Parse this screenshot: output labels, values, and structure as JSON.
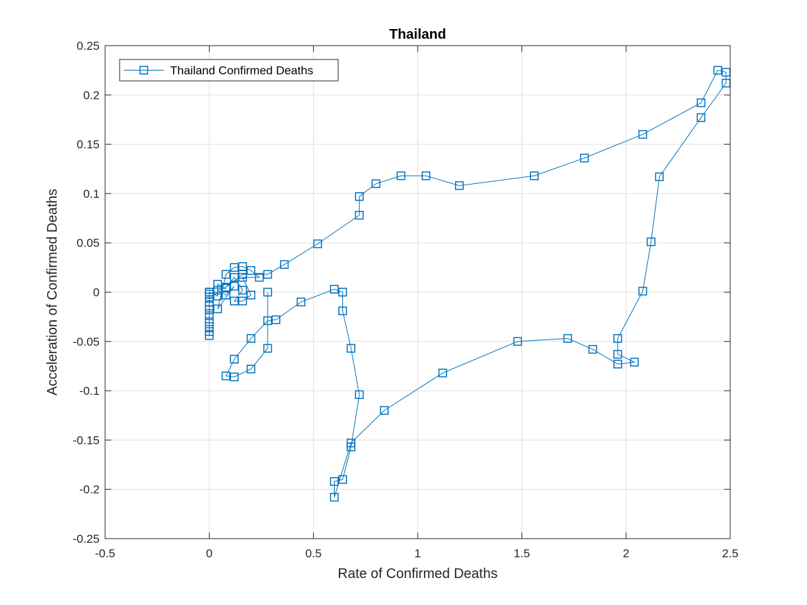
{
  "chart_data": {
    "type": "line",
    "title": "Thailand",
    "xlabel": "Rate of Confirmed Deaths",
    "ylabel": "Acceleration of Confirmed Deaths",
    "xlim": [
      -0.5,
      2.5
    ],
    "ylim": [
      -0.25,
      0.25
    ],
    "xticks": [
      -0.5,
      0,
      0.5,
      1,
      1.5,
      2,
      2.5
    ],
    "xtick_labels": [
      "-0.5",
      "0",
      "0.5",
      "1",
      "1.5",
      "2",
      "2.5"
    ],
    "yticks": [
      -0.25,
      -0.2,
      -0.15,
      -0.1,
      -0.05,
      0,
      0.05,
      0.1,
      0.15,
      0.2,
      0.25
    ],
    "ytick_labels": [
      "-0.25",
      "-0.2",
      "-0.15",
      "-0.1",
      "-0.05",
      "0",
      "0.05",
      "0.1",
      "0.15",
      "0.2",
      "0.25"
    ],
    "grid": true,
    "legend_position": "top-left",
    "series": [
      {
        "name": "Thailand Confirmed Deaths",
        "color": "#0072BD",
        "marker": "square",
        "points": [
          [
            0,
            0
          ],
          [
            0,
            -0.002
          ],
          [
            0,
            -0.005
          ],
          [
            0,
            -0.01
          ],
          [
            0,
            -0.014
          ],
          [
            0,
            -0.018
          ],
          [
            0,
            -0.024
          ],
          [
            0,
            -0.03
          ],
          [
            0,
            -0.035
          ],
          [
            0,
            -0.04
          ],
          [
            0,
            -0.044
          ],
          [
            0,
            0
          ],
          [
            0.04,
            -0.004
          ],
          [
            0.04,
            0.008
          ],
          [
            0.08,
            0.004
          ],
          [
            0.04,
            0.002
          ],
          [
            0.08,
            -0.003
          ],
          [
            0.12,
            0.006
          ],
          [
            0.04,
            -0.017
          ],
          [
            0.08,
            0.018
          ],
          [
            0.12,
            0.025
          ],
          [
            0.16,
            0.026
          ],
          [
            0.2,
            0.022
          ],
          [
            0.24,
            0.015
          ],
          [
            0.16,
            0.015
          ],
          [
            0.2,
            -0.003
          ],
          [
            0.16,
            -0.009
          ],
          [
            0.12,
            -0.009
          ],
          [
            0.16,
            0.002
          ],
          [
            0.12,
            0.015
          ],
          [
            0.08,
            0.005
          ],
          [
            0.16,
            0.018
          ],
          [
            0.28,
            0.018
          ],
          [
            0.36,
            0.028
          ],
          [
            0.52,
            0.049
          ],
          [
            0.72,
            0.078
          ],
          [
            0.72,
            0.097
          ],
          [
            0.8,
            0.11
          ],
          [
            0.92,
            0.118
          ],
          [
            1.04,
            0.118
          ],
          [
            1.2,
            0.108
          ],
          [
            1.56,
            0.118
          ],
          [
            1.8,
            0.136
          ],
          [
            2.08,
            0.16
          ],
          [
            2.36,
            0.192
          ],
          [
            2.44,
            0.225
          ],
          [
            2.48,
            0.223
          ],
          [
            2.48,
            0.212
          ],
          [
            2.36,
            0.177
          ],
          [
            2.16,
            0.117
          ],
          [
            2.12,
            0.051
          ],
          [
            2.08,
            0.001
          ],
          [
            1.96,
            -0.047
          ],
          [
            1.96,
            -0.063
          ],
          [
            2.04,
            -0.071
          ],
          [
            1.96,
            -0.073
          ],
          [
            1.84,
            -0.058
          ],
          [
            1.72,
            -0.047
          ],
          [
            1.48,
            -0.05
          ],
          [
            1.12,
            -0.082
          ],
          [
            0.84,
            -0.12
          ],
          [
            0.68,
            -0.153
          ],
          [
            0.6,
            -0.208
          ],
          [
            0.6,
            -0.192
          ],
          [
            0.64,
            -0.19
          ],
          [
            0.68,
            -0.157
          ],
          [
            0.72,
            -0.104
          ],
          [
            0.68,
            -0.057
          ],
          [
            0.64,
            -0.019
          ],
          [
            0.64,
            0
          ],
          [
            0.6,
            0.003
          ],
          [
            0.44,
            -0.01
          ],
          [
            0.32,
            -0.028
          ],
          [
            0.28,
            -0.029
          ],
          [
            0.2,
            -0.047
          ],
          [
            0.12,
            -0.068
          ],
          [
            0.08,
            -0.085
          ],
          [
            0.12,
            -0.086
          ],
          [
            0.2,
            -0.078
          ],
          [
            0.28,
            -0.057
          ],
          [
            0.28,
            0
          ]
        ]
      }
    ]
  }
}
